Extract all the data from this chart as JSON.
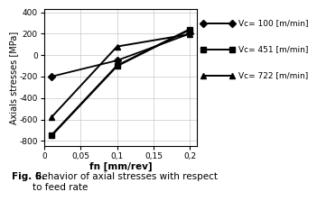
{
  "title": "",
  "xlabel": "fn [mm/rev]",
  "ylabel": "Axials stresses [MPa]",
  "xlim": [
    0,
    0.21
  ],
  "ylim": [
    -850,
    430
  ],
  "yticks": [
    -800,
    -600,
    -400,
    -200,
    0,
    200,
    400
  ],
  "xticks": [
    0,
    0.05,
    0.1,
    0.15,
    0.2
  ],
  "xtick_labels": [
    "0",
    "0,05",
    "0,1",
    "0,15",
    "0,2"
  ],
  "series": [
    {
      "label": "Vc= 100 [m/min]",
      "x": [
        0.01,
        0.1,
        0.2
      ],
      "y": [
        -200,
        -50,
        200
      ],
      "marker": "D",
      "linewidth": 1.4
    },
    {
      "label": "Vc= 451 [m/min]",
      "x": [
        0.01,
        0.1,
        0.2
      ],
      "y": [
        -750,
        -100,
        240
      ],
      "marker": "s",
      "linewidth": 1.8
    },
    {
      "label": "Vc= 722 [m/min]",
      "x": [
        0.01,
        0.1,
        0.2
      ],
      "y": [
        -580,
        80,
        195
      ],
      "marker": "^",
      "linewidth": 1.4
    }
  ],
  "legend_labels": [
    "Vc= 100 [m/min]",
    "Vc= 451 [m/min]",
    "Vc= 722 [m/min]"
  ],
  "legend_markers": [
    "D",
    "s",
    "^"
  ],
  "axis_fontsize": 7,
  "tick_fontsize": 6.5,
  "background_color": "#ffffff",
  "grid_color": "#c8c8c8",
  "caption_bold": "Fig. 6.",
  "caption_normal": " Behavior of axial stresses with respect\nto feed rate"
}
